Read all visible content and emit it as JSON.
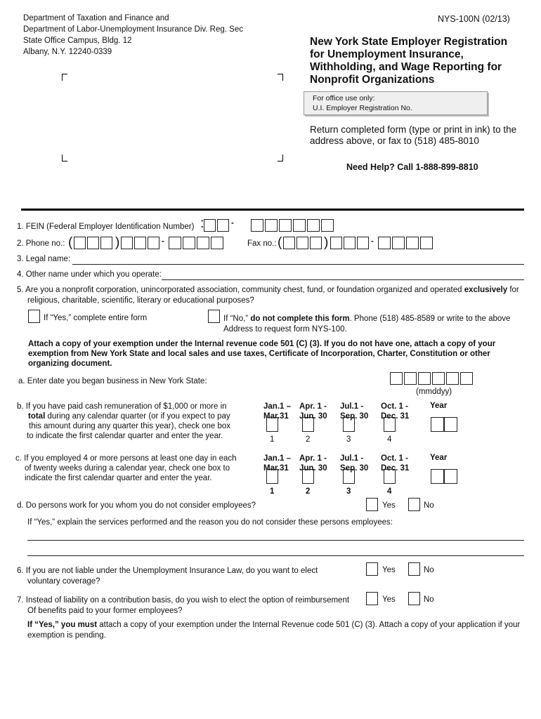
{
  "header": {
    "address": [
      "Department of Taxation and Finance and",
      "Department of Labor-Unemployment Insurance Div. Reg. Sec",
      "State Office Campus, Bldg. 12",
      "Albany, N.Y. 12240-0339"
    ],
    "form_number": "NYS-100N (02/13)",
    "title": [
      "New York State Employer Registration",
      "for Unemployment Insurance,",
      "Withholding, and Wage Reporting for",
      "Nonprofit Organizations"
    ],
    "office_use_label": "For office use only:",
    "office_use_field": "U.I. Employer Registration No.",
    "return_text": [
      "Return completed form (type or print in ink) to the",
      "address above, or fax to (518) 485-8010"
    ],
    "help": "Need Help?  Call 1-888-899-8810"
  },
  "q1": {
    "label": "1.  FEIN (Federal Employer Identification Number)",
    "colon": ":",
    "dash": "-"
  },
  "q2": {
    "label": "2.  Phone no.:",
    "fax_label": "Fax no.:",
    "open": "(",
    "close": ")",
    "dash": "-"
  },
  "q3": {
    "label": "3.  Legal name:"
  },
  "q4": {
    "label": "4.  Other name under which you operate:"
  },
  "q5": {
    "text1": "5.  Are you a nonprofit corporation, unincorporated association, community chest, fund, or foundation organized and operated ",
    "bold": "exclusively",
    "text1b": " for",
    "text2": "religious, charitable, scientific, literary or educational purposes?",
    "yes_text": "If “Yes,” complete entire form",
    "no_text_a": "If “No,” ",
    "no_bold": "do not complete this form",
    "no_text_b": ".  Phone (518) 485-8589 or write to the above",
    "no_text2": "Address to request form NYS-100.",
    "attach": [
      "Attach a copy of your exemption under the Internal revenue code 501 (C) (3).  If you do not have one, attach a copy of your",
      "exemption from New York State and local sales and use taxes, Certificate of Incorporation, Charter, Constitution or other",
      "organizing document."
    ]
  },
  "qa": {
    "label": "a. Enter date you began business in New York State:",
    "format": "(mmddyy)"
  },
  "qb": {
    "lines": [
      "b. If you have paid cash remuneration of $1,000 or more in",
      "total",
      "during any calendar quarter (or if you expect to pay",
      "this amount during any quarter this year), check one box",
      "to indicate the first calendar quarter and enter the year."
    ]
  },
  "qc": {
    "lines": [
      "c. If you employed 4 or more persons at least one day in each",
      "of twenty weeks during a calendar year, check one box to",
      "indicate the first calendar quarter and enter the year."
    ]
  },
  "quarters": [
    {
      "a": "Jan.1 –",
      "b": "Mar.31",
      "n": "1"
    },
    {
      "a": "Apr. 1 -",
      "b": "Jun. 30",
      "n": "2"
    },
    {
      "a": "Jul.1 -",
      "b": "Sep. 30",
      "n": "3"
    },
    {
      "a": "Oct. 1 -",
      "b": "Dec. 31",
      "n": "4"
    }
  ],
  "year_label": "Year",
  "qd": {
    "label": "d.  Do persons work for you whom you do not consider employees?",
    "explain": "If “Yes,” explain the services performed and the reason you do not consider these persons employees:"
  },
  "yes": "Yes",
  "no": "No",
  "q6": {
    "lines": [
      "6.  If you are not liable under the Unemployment Insurance Law, do you want to elect",
      "voluntary coverage?"
    ]
  },
  "q7": {
    "lines": [
      "7.  Instead of liability on a contribution basis, do you wish to elect the option of reimbursement",
      "Of benefits paid to your former employees?"
    ]
  },
  "footer": {
    "bold": "If “Yes,” you must",
    "text": " attach a copy of your exemption under the Internal Revenue code 501 (C) (3).  Attach a copy of your application if your",
    "text2": "exemption is pending."
  }
}
